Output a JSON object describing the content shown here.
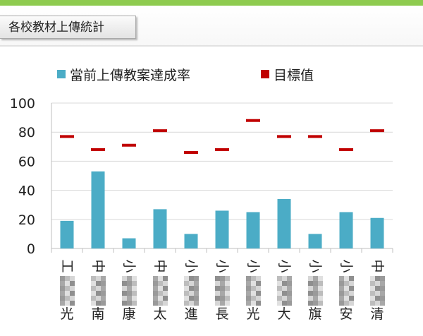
{
  "header": {
    "title": "各校教材上傳統計"
  },
  "colors": {
    "accent_bar": "#8ecb4f",
    "actual_series": "#4bacc6",
    "target_series": "#c00000"
  },
  "chart_data": {
    "type": "bar",
    "title": "",
    "xlabel": "",
    "ylabel": "",
    "ylim": [
      0,
      100
    ],
    "yticks": [
      0,
      20,
      40,
      60,
      80,
      100
    ],
    "grid": true,
    "legend_position": "top",
    "categories": [
      {
        "top": "工",
        "bottom": "光"
      },
      {
        "top": "中",
        "bottom": "南"
      },
      {
        "top": "小",
        "bottom": "康"
      },
      {
        "top": "中",
        "bottom": "太"
      },
      {
        "top": "小",
        "bottom": "進"
      },
      {
        "top": "小",
        "bottom": "長"
      },
      {
        "top": "小",
        "bottom": "光"
      },
      {
        "top": "小",
        "bottom": "大"
      },
      {
        "top": "小",
        "bottom": "旗"
      },
      {
        "top": "小",
        "bottom": "安"
      },
      {
        "top": "中",
        "bottom": "清"
      }
    ],
    "series": [
      {
        "name": "當前上傳教案達成率",
        "style": "bar",
        "values": [
          19,
          53,
          7,
          27,
          10,
          26,
          25,
          34,
          10,
          25,
          21
        ]
      },
      {
        "name": "目標值",
        "style": "dash",
        "values": [
          77,
          68,
          71,
          81,
          66,
          68,
          88,
          77,
          77,
          68,
          81
        ]
      }
    ]
  }
}
